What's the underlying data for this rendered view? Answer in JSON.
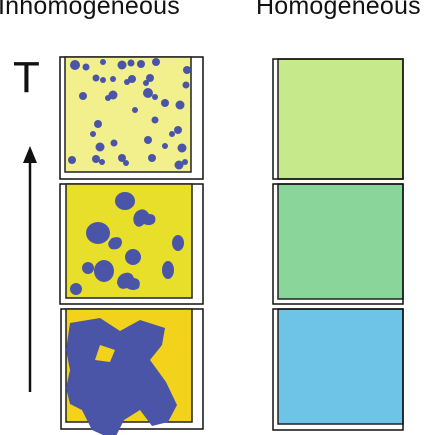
{
  "headers": {
    "inhomogeneous": "Inhomogeneous",
    "homogeneous": "Homogeneous"
  },
  "axis": {
    "label": "T",
    "direction": "up"
  },
  "panels": [
    {
      "row": 1,
      "inhomogeneous": {
        "background": "#f2f08c",
        "blob": "#4a55a8",
        "pattern": "many small particles"
      },
      "homogeneous": {
        "fill": "#c6e98c"
      }
    },
    {
      "row": 2,
      "inhomogeneous": {
        "background": "#e8df2a",
        "blob": "#4a55a8",
        "pattern": "medium particles"
      },
      "homogeneous": {
        "fill": "#8ad69a"
      }
    },
    {
      "row": 3,
      "inhomogeneous": {
        "background": "#f2d21a",
        "blob": "#4a55a8",
        "pattern": "large connected cluster"
      },
      "homogeneous": {
        "fill": "#6ec4e6"
      }
    }
  ],
  "colors": {
    "border": "#111111",
    "arrow": "#111111"
  }
}
